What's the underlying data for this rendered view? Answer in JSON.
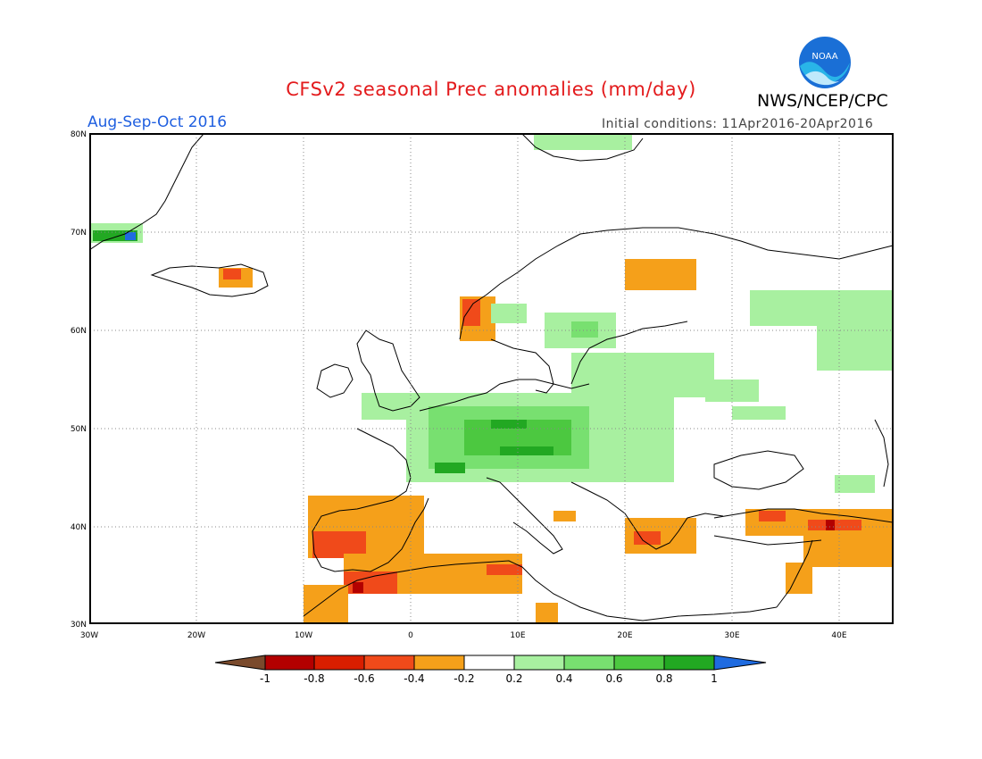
{
  "header": {
    "title": "CFSv2 seasonal Prec anomalies (mm/day)",
    "org": "NWS/NCEP/CPC",
    "period": "Aug-Sep-Oct 2016",
    "initial_conditions": "Initial conditions: 11Apr2016-20Apr2016",
    "logo_text": "NOAA"
  },
  "map": {
    "lon_range": [
      -30,
      45
    ],
    "lat_range": [
      30,
      80
    ],
    "lat_labels": [
      "30N",
      "40N",
      "50N",
      "60N",
      "70N",
      "80N"
    ],
    "lon_labels": [
      "30W",
      "20W",
      "10W",
      "0",
      "10E",
      "20E",
      "30E",
      "40E"
    ]
  },
  "legend": {
    "tick_labels": [
      "-1",
      "-0.8",
      "-0.6",
      "-0.4",
      "-0.2",
      "0.2",
      "0.4",
      "0.6",
      "0.8",
      "1"
    ],
    "colors": [
      "#7a4a2c",
      "#b30000",
      "#d91e00",
      "#f04a1a",
      "#f5a01a",
      "#ffffff",
      "#a8f0a0",
      "#78e070",
      "#4cc840",
      "#22a822",
      "#1f6be0"
    ]
  },
  "colors": {
    "title": "#e31a1c",
    "period": "#1f5fe0",
    "coast": "#000000",
    "grid": "#888888"
  }
}
